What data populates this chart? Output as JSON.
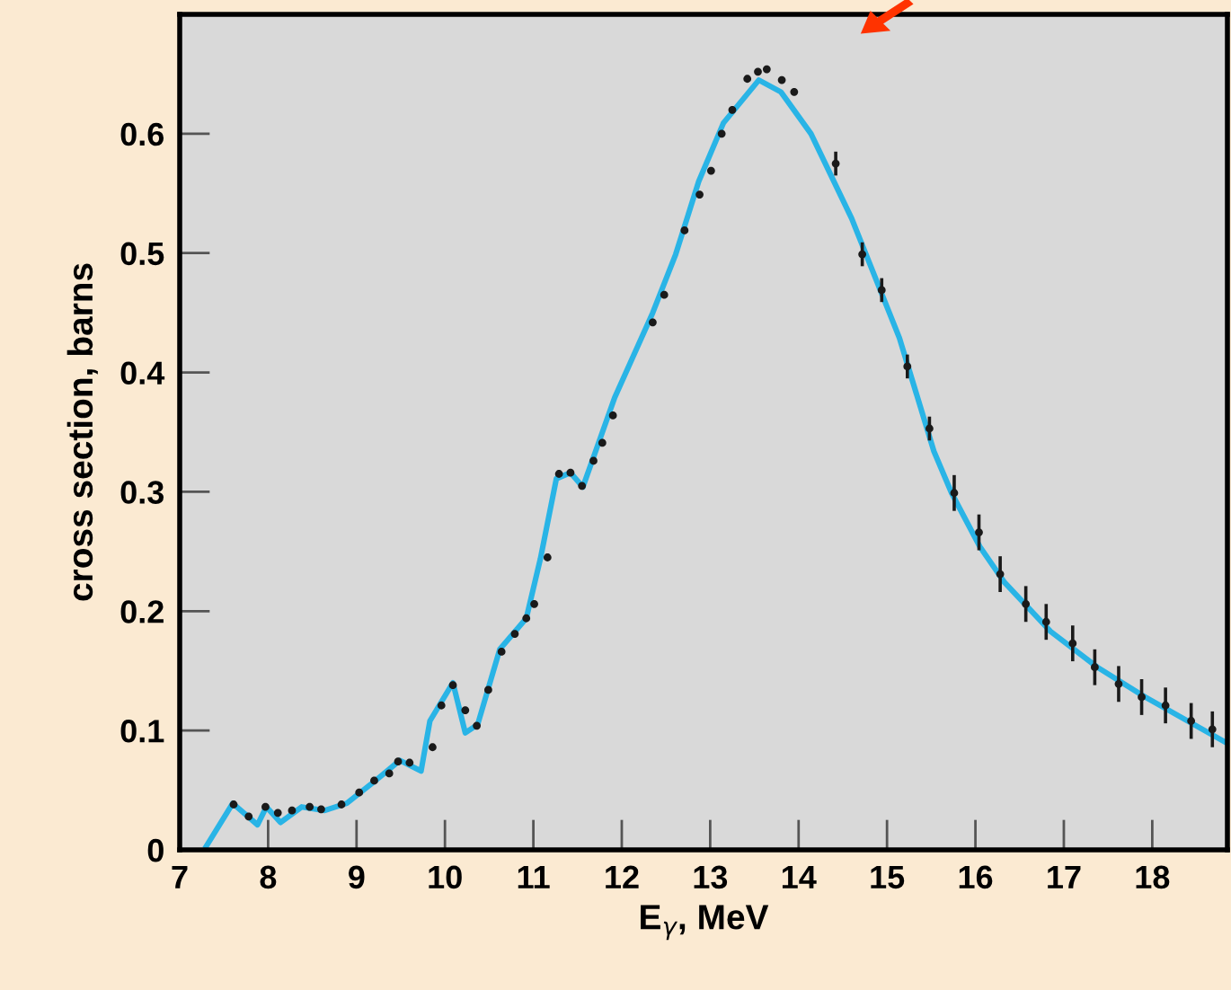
{
  "chart_data": {
    "type": "line",
    "xlabel": "E$_{γ}$, MeV",
    "ylabel": "cross section, barns",
    "xlim": [
      7,
      18.85
    ],
    "ylim": [
      0,
      0.7
    ],
    "xticks": [
      7,
      8,
      9,
      10,
      11,
      12,
      13,
      14,
      15,
      16,
      17,
      18
    ],
    "yticks": [
      0,
      0.1,
      0.2,
      0.3,
      0.4,
      0.5,
      0.6
    ],
    "grid": false,
    "legend": false,
    "series": [
      {
        "color": "#29b4e6",
        "marker": "none",
        "line_style": "solid",
        "x": [
          7.3,
          7.6,
          7.88,
          7.98,
          8.14,
          8.38,
          8.64,
          8.89,
          9.23,
          9.49,
          9.73,
          9.83,
          10.09,
          10.23,
          10.37,
          10.62,
          10.92,
          11.08,
          11.26,
          11.42,
          11.56,
          11.68,
          11.92,
          12.35,
          12.61,
          12.87,
          13.15,
          13.55,
          13.8,
          14.14,
          14.6,
          15.14,
          15.53,
          15.73,
          16.05,
          16.33,
          16.85,
          17.38,
          17.92,
          18.83
        ],
        "values": [
          0.003,
          0.039,
          0.021,
          0.036,
          0.023,
          0.036,
          0.033,
          0.039,
          0.059,
          0.075,
          0.066,
          0.108,
          0.14,
          0.098,
          0.105,
          0.168,
          0.194,
          0.244,
          0.311,
          0.316,
          0.304,
          0.329,
          0.379,
          0.45,
          0.499,
          0.56,
          0.609,
          0.645,
          0.635,
          0.6,
          0.529,
          0.429,
          0.334,
          0.299,
          0.254,
          0.224,
          0.183,
          0.153,
          0.128,
          0.09
        ]
      },
      {
        "type": "scatter",
        "color": "#1a1a1a",
        "marker": "circle",
        "x": [
          7.61,
          7.78,
          7.97,
          8.11,
          8.27,
          8.47,
          8.6,
          8.83,
          9.03,
          9.2,
          9.37,
          9.47,
          9.6,
          9.86,
          9.96,
          10.09,
          10.23,
          10.36,
          10.49,
          10.64,
          10.79,
          10.92,
          11.01,
          11.16,
          11.29,
          11.42,
          11.55,
          11.68,
          11.78,
          11.9,
          12.35,
          12.48,
          12.71,
          12.88,
          13.01,
          13.13,
          13.25,
          13.42,
          13.54,
          13.64,
          13.81,
          13.95,
          14.42,
          14.72,
          14.94,
          15.23,
          15.48,
          15.76,
          16.04,
          16.28,
          16.57,
          16.8,
          17.1,
          17.35,
          17.62,
          17.88,
          18.15,
          18.44,
          18.68
        ],
        "values": [
          0.038,
          0.028,
          0.036,
          0.031,
          0.033,
          0.036,
          0.034,
          0.038,
          0.048,
          0.058,
          0.064,
          0.074,
          0.073,
          0.086,
          0.121,
          0.138,
          0.117,
          0.104,
          0.134,
          0.166,
          0.181,
          0.194,
          0.206,
          0.245,
          0.315,
          0.316,
          0.305,
          0.326,
          0.341,
          0.364,
          0.442,
          0.465,
          0.519,
          0.549,
          0.569,
          0.6,
          0.62,
          0.646,
          0.652,
          0.654,
          0.645,
          0.635,
          0.575,
          0.499,
          0.469,
          0.405,
          0.353,
          0.299,
          0.266,
          0.231,
          0.206,
          0.191,
          0.173,
          0.153,
          0.139,
          0.128,
          0.121,
          0.108,
          0.101
        ],
        "errors": [
          null,
          null,
          null,
          null,
          null,
          null,
          null,
          null,
          null,
          null,
          null,
          null,
          null,
          null,
          null,
          null,
          null,
          null,
          null,
          null,
          null,
          null,
          null,
          null,
          null,
          null,
          null,
          null,
          null,
          null,
          null,
          null,
          null,
          null,
          null,
          null,
          null,
          null,
          null,
          null,
          null,
          null,
          0.01,
          0.01,
          0.01,
          0.01,
          0.01,
          0.015,
          0.015,
          0.015,
          0.015,
          0.015,
          0.015,
          0.015,
          0.015,
          0.015,
          0.015,
          0.015,
          0.015
        ]
      }
    ]
  }
}
